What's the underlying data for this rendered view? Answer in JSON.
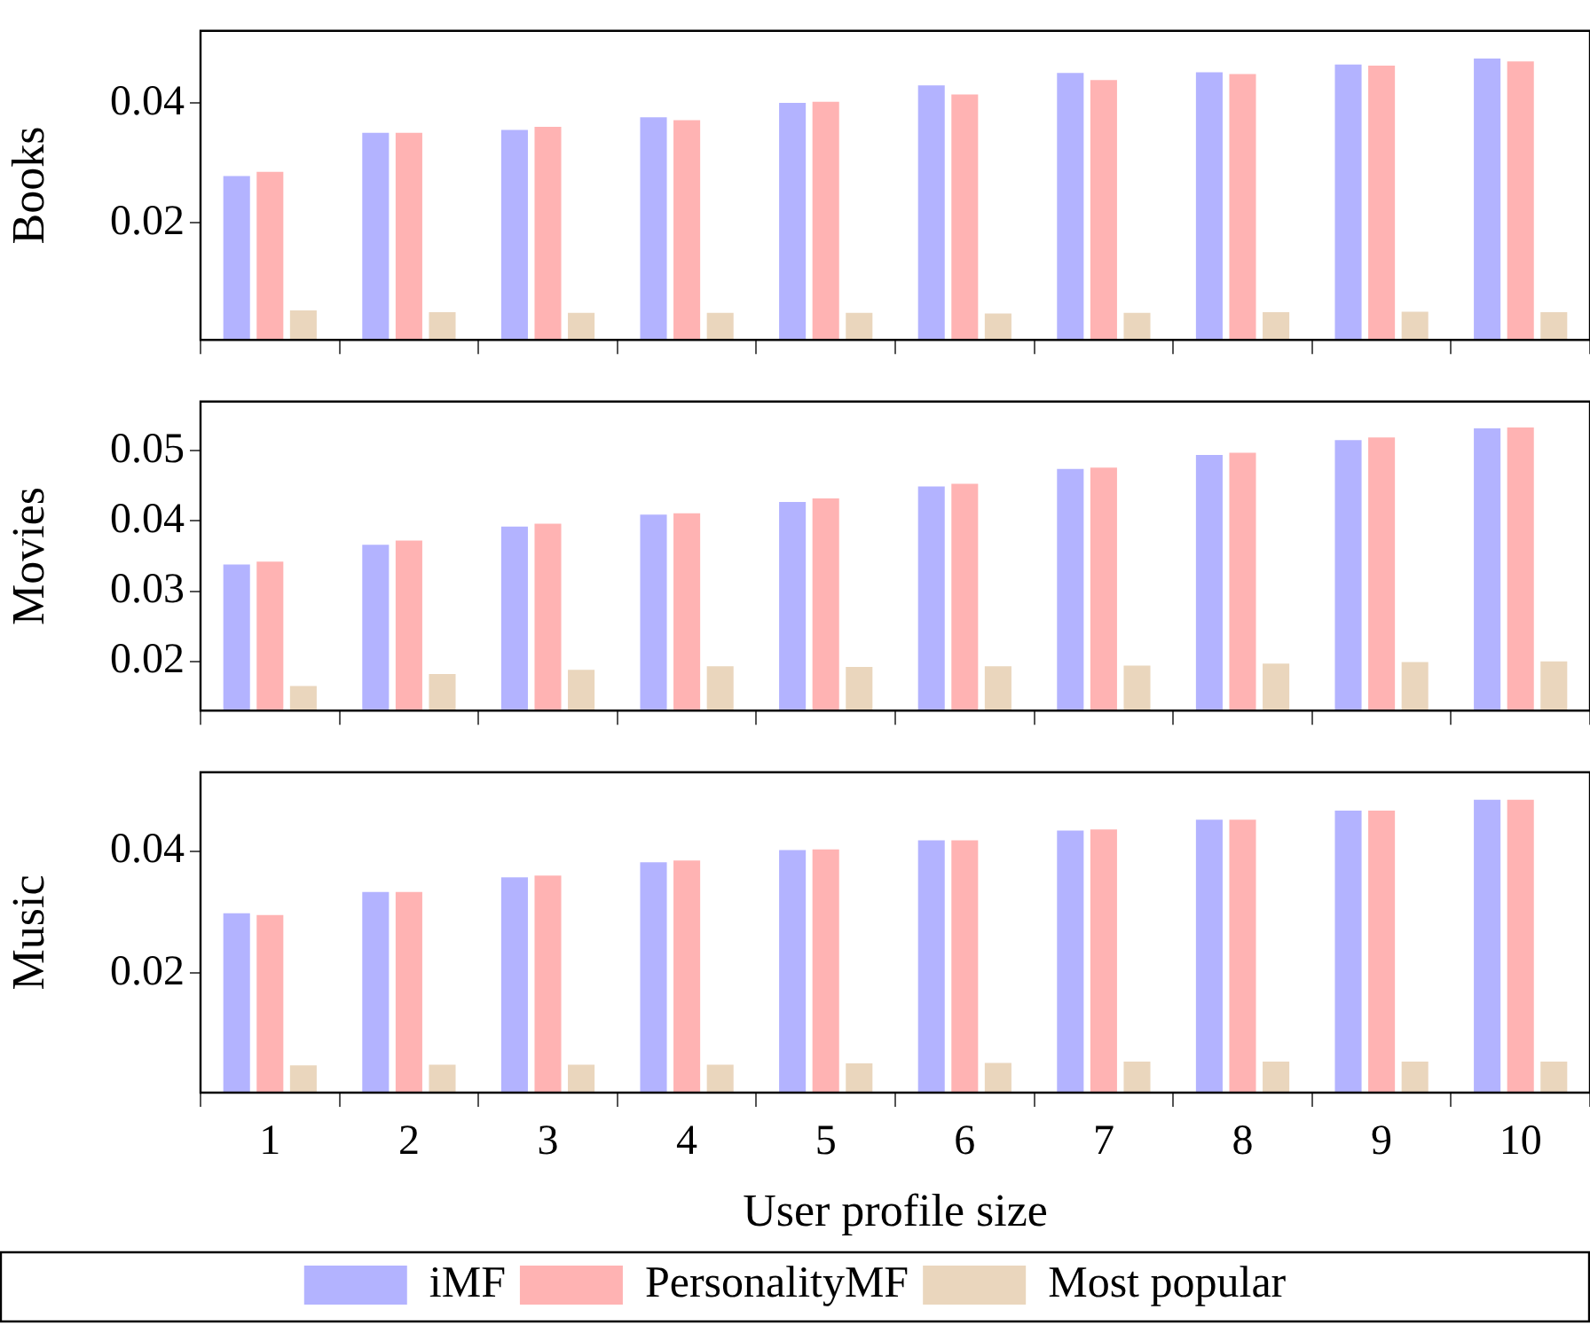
{
  "chart_data": [
    {
      "type": "bar",
      "ylabel": "Books",
      "categories": [
        "1",
        "2",
        "3",
        "4",
        "5",
        "6",
        "7",
        "8",
        "9",
        "10"
      ],
      "ylim": [
        0.0005,
        0.052
      ],
      "yticks": [
        0.02,
        0.04
      ],
      "tick_labels": "y",
      "series": [
        {
          "color": "#b3b3ff",
          "values": [
            0.0278,
            0.035,
            0.0355,
            0.0376,
            0.04,
            0.0429,
            0.045,
            0.0451,
            0.0464,
            0.0474
          ]
        },
        {
          "color": "#ffb3b3",
          "values": [
            0.0285,
            0.035,
            0.036,
            0.0371,
            0.0402,
            0.0414,
            0.0438,
            0.0448,
            0.0462,
            0.0469
          ]
        },
        {
          "color": "#ead6bd",
          "values": [
            0.0054,
            0.0051,
            0.005,
            0.005,
            0.005,
            0.0049,
            0.005,
            0.0051,
            0.0052,
            0.0051
          ]
        }
      ]
    },
    {
      "type": "bar",
      "ylabel": "Movies",
      "categories": [
        "1",
        "2",
        "3",
        "4",
        "5",
        "6",
        "7",
        "8",
        "9",
        "10"
      ],
      "ylim": [
        0.013,
        0.057
      ],
      "yticks": [
        0.02,
        0.03,
        0.04,
        0.05
      ],
      "tick_labels": "y",
      "series": [
        {
          "color": "#b3b3ff",
          "values": [
            0.0338,
            0.0366,
            0.0392,
            0.0409,
            0.0427,
            0.0449,
            0.0474,
            0.0494,
            0.0515,
            0.0532
          ]
        },
        {
          "color": "#ffb3b3",
          "values": [
            0.0342,
            0.0372,
            0.0396,
            0.0411,
            0.0432,
            0.0453,
            0.0476,
            0.0497,
            0.0519,
            0.0533
          ]
        },
        {
          "color": "#ead6bd",
          "values": [
            0.0165,
            0.0182,
            0.0188,
            0.0193,
            0.0192,
            0.0193,
            0.0194,
            0.0197,
            0.0199,
            0.02
          ]
        }
      ]
    },
    {
      "type": "bar",
      "ylabel": "Music",
      "xlabel": "User profile size",
      "legend": "bottom",
      "categories": [
        "1",
        "2",
        "3",
        "4",
        "5",
        "6",
        "7",
        "8",
        "9",
        "10"
      ],
      "ylim": [
        0.0003,
        0.053
      ],
      "yticks": [
        0.02,
        0.04
      ],
      "series": [
        {
          "name": "iMF",
          "color": "#b3b3ff",
          "values": [
            0.0298,
            0.0333,
            0.0357,
            0.0382,
            0.0402,
            0.0418,
            0.0434,
            0.0452,
            0.0467,
            0.0485
          ]
        },
        {
          "name": "PersonalityMF",
          "color": "#ffb3b3",
          "values": [
            0.0295,
            0.0333,
            0.036,
            0.0385,
            0.0403,
            0.0418,
            0.0436,
            0.0452,
            0.0467,
            0.0485
          ]
        },
        {
          "name": "Most popular",
          "color": "#ead6bd",
          "values": [
            0.0048,
            0.0049,
            0.0049,
            0.0049,
            0.0051,
            0.0052,
            0.0054,
            0.0054,
            0.0054,
            0.0054
          ]
        }
      ]
    }
  ]
}
